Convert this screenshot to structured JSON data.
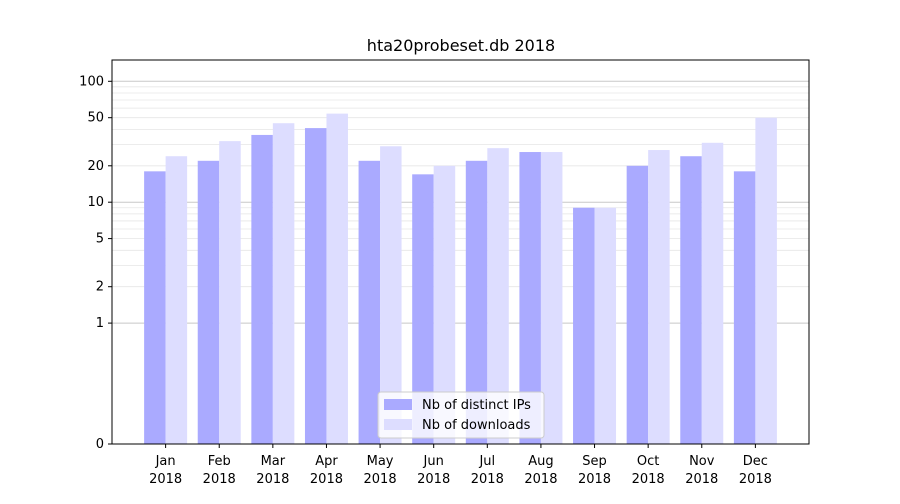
{
  "chart_data": {
    "type": "bar",
    "title": "hta20probeset.db 2018",
    "xlabel": "",
    "ylabel": "",
    "yscale": "symlog",
    "ylim": [
      0,
      150
    ],
    "yticks": [
      0,
      1,
      2,
      5,
      10,
      20,
      50,
      100
    ],
    "categories": [
      {
        "month": "Jan",
        "year": "2018"
      },
      {
        "month": "Feb",
        "year": "2018"
      },
      {
        "month": "Mar",
        "year": "2018"
      },
      {
        "month": "Apr",
        "year": "2018"
      },
      {
        "month": "May",
        "year": "2018"
      },
      {
        "month": "Jun",
        "year": "2018"
      },
      {
        "month": "Jul",
        "year": "2018"
      },
      {
        "month": "Aug",
        "year": "2018"
      },
      {
        "month": "Sep",
        "year": "2018"
      },
      {
        "month": "Oct",
        "year": "2018"
      },
      {
        "month": "Nov",
        "year": "2018"
      },
      {
        "month": "Dec",
        "year": "2018"
      }
    ],
    "series": [
      {
        "name": "Nb of distinct IPs",
        "color": "#aaaaff",
        "values": [
          18,
          22,
          36,
          41,
          22,
          17,
          22,
          26,
          9,
          20,
          24,
          18
        ]
      },
      {
        "name": "Nb of downloads",
        "color": "#ddddff",
        "values": [
          24,
          32,
          45,
          54,
          29,
          20,
          28,
          26,
          9,
          27,
          31,
          50
        ]
      }
    ],
    "legend": "bottom-center",
    "grid": true
  }
}
